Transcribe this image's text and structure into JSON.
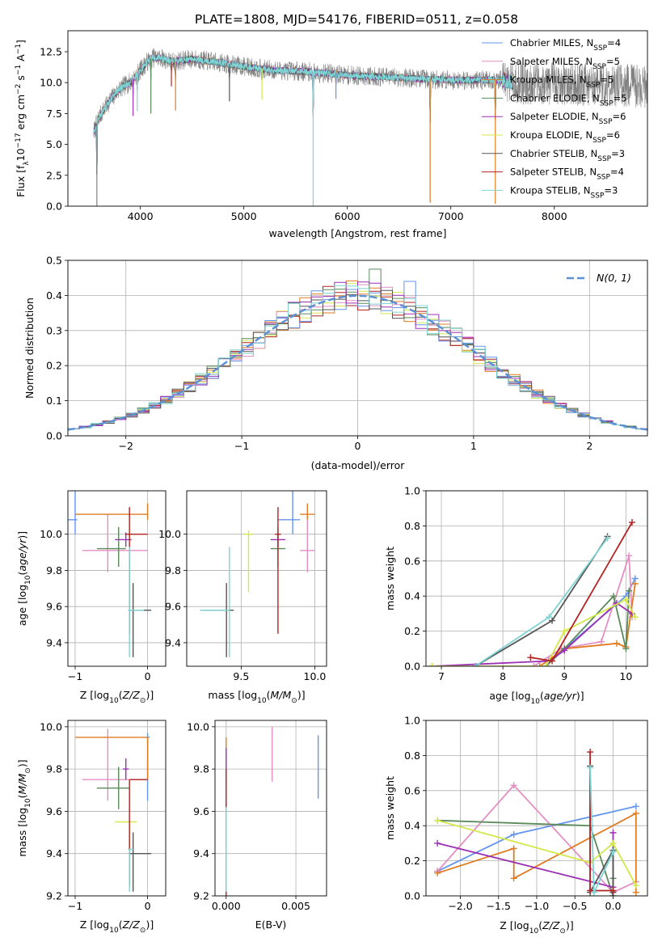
{
  "figure": {
    "title": "PLATE=1808, MJD=54176, FIBERID=0511, z=0.058"
  },
  "colors": {
    "series": [
      "#6495ed",
      "#e48fc4",
      "#e07b22",
      "#5a8a5a",
      "#9b30b3",
      "#d4e84a",
      "#555555",
      "#b22222",
      "#7fd4d4"
    ],
    "grid": "#b0b0b0",
    "gauss": "#5b8fd6"
  },
  "chart_data": [
    {
      "id": "spectrum",
      "type": "line",
      "xlabel": "wavelength [Angstrom, rest frame]",
      "ylabel": "Flux [f_λ 10^-17 erg cm^-2 s^-1 A^-1]",
      "xlim": [
        3300,
        8900
      ],
      "ylim": [
        0,
        14.2
      ],
      "xticks": [
        4000,
        5000,
        6000,
        7000,
        8000
      ],
      "yticks": [
        0.0,
        2.5,
        5.0,
        7.5,
        10.0,
        12.5
      ],
      "ytick_labels": [
        "0.0",
        "2.5",
        "5.0",
        "7.5",
        "10.0",
        "12.5"
      ],
      "grid": false,
      "legend_position": "top-right",
      "legend": [
        {
          "name": "Chabrier MILES, N_SSP=4"
        },
        {
          "name": "Salpeter MILES, N_SSP=5"
        },
        {
          "name": "Kroupa MILES, N_SSP=5"
        },
        {
          "name": "Chabrier ELODIE, N_SSP=5"
        },
        {
          "name": "Salpeter ELODIE, N_SSP=6"
        },
        {
          "name": "Kroupa ELODIE, N_SSP=6"
        },
        {
          "name": "Chabrier STELIB, N_SSP=3"
        },
        {
          "name": "Salpeter STELIB, N_SSP=4"
        },
        {
          "name": "Kroupa STELIB, N_SSP=3"
        }
      ],
      "data_range": [
        3550,
        8900
      ],
      "continuum": {
        "x": [
          3550,
          3600,
          3700,
          3800,
          3900,
          4000,
          4100,
          4200,
          4300,
          4400,
          4500,
          4700,
          5000,
          5300,
          5600,
          6000,
          6500,
          7000,
          7500,
          7600,
          8000,
          8500,
          8900
        ],
        "y": [
          6.0,
          7.2,
          8.5,
          9.5,
          10.0,
          11.0,
          12.0,
          12.0,
          11.7,
          11.8,
          11.9,
          11.7,
          11.3,
          11.0,
          10.9,
          10.6,
          10.4,
          10.2,
          10.2,
          10.0,
          9.9,
          9.8,
          9.7
        ]
      },
      "absorption_features": [
        {
          "x": 3580,
          "depth": 14.0
        },
        {
          "x": 3930,
          "depth": 3.0
        },
        {
          "x": 3970,
          "depth": 3.0
        },
        {
          "x": 4102,
          "depth": 4.5
        },
        {
          "x": 4300,
          "depth": 2.0
        },
        {
          "x": 4340,
          "depth": 4.0
        },
        {
          "x": 4861,
          "depth": 3.0
        },
        {
          "x": 5175,
          "depth": 2.5
        },
        {
          "x": 5670,
          "depth": 11.0
        },
        {
          "x": 5890,
          "depth": 2.0
        },
        {
          "x": 6800,
          "depth": 10.0
        },
        {
          "x": 7430,
          "depth": 10.0
        }
      ]
    },
    {
      "id": "residual-histogram",
      "type": "line",
      "xlabel": "(data-model)/error",
      "ylabel": "Normed distribution",
      "xlim": [
        -2.5,
        2.5
      ],
      "ylim": [
        0,
        0.5
      ],
      "xticks": [
        -2,
        -1,
        0,
        1,
        2
      ],
      "xtick_labels": [
        "−2",
        "−1",
        "0",
        "1",
        "2"
      ],
      "yticks": [
        0.0,
        0.1,
        0.2,
        0.3,
        0.4,
        0.5
      ],
      "ytick_labels": [
        "0.0",
        "0.1",
        "0.2",
        "0.3",
        "0.4",
        "0.5"
      ],
      "grid": true,
      "legend_position": "top-right",
      "legend": [
        {
          "name": "𝒩(0, 1)"
        }
      ],
      "bin_width": 0.1,
      "bin_start": -2.5,
      "gaussian": {
        "mean": 0,
        "sigma": 1
      }
    },
    {
      "id": "age-vs-Z",
      "type": "scatter",
      "xlabel": "Z [log10(Z/Z_sun)]",
      "ylabel": "age  [log10(age/yr)]",
      "xlim": [
        -1.1,
        0.25
      ],
      "ylim": [
        9.27,
        10.24
      ],
      "xticks": [
        -1,
        0
      ],
      "xtick_labels": [
        "−1",
        "0"
      ],
      "yticks": [
        9.4,
        9.6,
        9.8,
        10.0
      ],
      "ytick_labels": [
        "9.4",
        "9.6",
        "9.8",
        "10.0"
      ],
      "grid": true,
      "points": [
        {
          "series": 0,
          "x": -1.0,
          "y": 10.08,
          "x_err": [
            1.0,
            0.03
          ],
          "y_err": [
            0.08,
            0.16
          ]
        },
        {
          "series": 1,
          "x": -0.55,
          "y": 9.91,
          "x_err": [
            0.35,
            0.55
          ],
          "y_err": [
            0.12,
            0.2
          ]
        },
        {
          "series": 2,
          "x": 0.0,
          "y": 10.11,
          "x_err": [
            1.0,
            0.0
          ],
          "y_err": [
            0.03,
            0.06
          ]
        },
        {
          "series": 3,
          "x": -0.4,
          "y": 9.92,
          "x_err": [
            0.3,
            0.1
          ],
          "y_err": [
            0.1,
            0.12
          ]
        },
        {
          "series": 4,
          "x": -0.3,
          "y": 9.97,
          "x_err": [
            0.15,
            0.08
          ],
          "y_err": [
            0.04,
            0.04
          ]
        },
        {
          "series": 5,
          "x": -0.25,
          "y": 10.0,
          "x_err": [
            0.05,
            0.05
          ],
          "y_err": [
            0.02,
            0.02
          ]
        },
        {
          "series": 6,
          "x": -0.2,
          "y": 9.58,
          "x_err": [
            0.05,
            0.25
          ],
          "y_err": [
            0.26,
            0.15
          ]
        },
        {
          "series": 7,
          "x": -0.25,
          "y": 10.0,
          "x_err": [
            0.06,
            0.25
          ],
          "y_err": [
            0.55,
            0.15
          ]
        },
        {
          "series": 8,
          "x": -0.25,
          "y": 9.58,
          "x_err": [
            0.02,
            0.2
          ],
          "y_err": [
            0.26,
            0.35
          ]
        }
      ]
    },
    {
      "id": "age-vs-mass",
      "type": "scatter",
      "xlabel": "mass [log10(M/M_sun)]",
      "ylabel": "",
      "xlim": [
        9.13,
        10.08
      ],
      "ylim": [
        9.27,
        10.24
      ],
      "xticks": [
        9.5,
        10.0
      ],
      "xtick_labels": [
        "9.5",
        "10.0"
      ],
      "yticks": [
        9.4,
        9.6,
        9.8,
        10.0
      ],
      "ytick_labels": [
        "9.4",
        "9.6",
        "9.8",
        "10.0"
      ],
      "grid": true,
      "points": [
        {
          "series": 0,
          "x": 9.85,
          "y": 10.08,
          "x_err": [
            0.1,
            0.05
          ],
          "y_err": [
            0.08,
            0.16
          ]
        },
        {
          "series": 1,
          "x": 9.95,
          "y": 9.91,
          "x_err": [
            0.05,
            0.05
          ],
          "y_err": [
            0.12,
            0.2
          ]
        },
        {
          "series": 2,
          "x": 9.95,
          "y": 10.11,
          "x_err": [
            0.05,
            0.05
          ],
          "y_err": [
            0.03,
            0.06
          ]
        },
        {
          "series": 3,
          "x": 9.75,
          "y": 9.92,
          "x_err": [
            0.05,
            0.05
          ],
          "y_err": [
            0.1,
            0.12
          ]
        },
        {
          "series": 4,
          "x": 9.75,
          "y": 9.97,
          "x_err": [
            0.05,
            0.05
          ],
          "y_err": [
            0.04,
            0.04
          ]
        },
        {
          "series": 5,
          "x": 9.55,
          "y": 10.0,
          "x_err": [
            0.03,
            0.03
          ],
          "y_err": [
            0.32,
            0.02
          ]
        },
        {
          "series": 6,
          "x": 9.4,
          "y": 9.58,
          "x_err": [
            0.17,
            0.05
          ],
          "y_err": [
            0.26,
            0.15
          ]
        },
        {
          "series": 7,
          "x": 9.75,
          "y": 10.0,
          "x_err": [
            0.02,
            0.02
          ],
          "y_err": [
            0.55,
            0.15
          ]
        },
        {
          "series": 8,
          "x": 9.42,
          "y": 9.58,
          "x_err": [
            0.2,
            0.0
          ],
          "y_err": [
            0.26,
            0.35
          ]
        }
      ]
    },
    {
      "id": "weight-vs-age",
      "type": "line",
      "xlabel": "age  [log10(age/yr)]",
      "ylabel": "mass weight",
      "xlim": [
        6.75,
        10.35
      ],
      "ylim": [
        0,
        1.0
      ],
      "xticks": [
        7,
        8,
        9,
        10
      ],
      "xtick_labels": [
        "7",
        "8",
        "9",
        "10"
      ],
      "yticks": [
        0.0,
        0.2,
        0.4,
        0.6,
        0.8,
        1.0
      ],
      "ytick_labels": [
        "0.0",
        "0.2",
        "0.4",
        "0.6",
        "0.8",
        "1.0"
      ],
      "grid": true,
      "series": [
        {
          "x": [
            8.7,
            9.0,
            10.0,
            10.15
          ],
          "y": [
            0.0,
            0.1,
            0.4,
            0.5
          ]
        },
        {
          "x": [
            8.5,
            8.95,
            9.6,
            10.05,
            10.1
          ],
          "y": [
            0.0,
            0.1,
            0.14,
            0.63,
            0.28
          ]
        },
        {
          "x": [
            8.6,
            9.0,
            9.85,
            10.0,
            10.15
          ],
          "y": [
            0.0,
            0.1,
            0.13,
            0.11,
            0.47
          ]
        },
        {
          "x": [
            8.7,
            9.0,
            9.8,
            10.0,
            10.05
          ],
          "y": [
            0.0,
            0.1,
            0.4,
            0.1,
            0.43
          ]
        },
        {
          "x": [
            6.85,
            8.75,
            9.0,
            9.85,
            10.1
          ],
          "y": [
            0.0,
            0.03,
            0.09,
            0.36,
            0.3
          ]
        },
        {
          "x": [
            6.85,
            8.7,
            9.0,
            10.0,
            10.15
          ],
          "y": [
            0.0,
            0.0,
            0.2,
            0.38,
            0.28
          ]
        },
        {
          "x": [
            7.55,
            8.8,
            9.7
          ],
          "y": [
            0.0,
            0.26,
            0.74
          ]
        },
        {
          "x": [
            8.45,
            8.8,
            10.1
          ],
          "y": [
            0.05,
            0.03,
            0.82
          ]
        },
        {
          "x": [
            7.55,
            8.75,
            9.7
          ],
          "y": [
            0.0,
            0.28,
            0.73
          ]
        }
      ]
    },
    {
      "id": "mass-vs-Z",
      "type": "scatter",
      "xlabel": "Z [log10(Z/Z_sun)]",
      "ylabel": "mass [log10(M/M_sun)]",
      "xlim": [
        -1.1,
        0.25
      ],
      "ylim": [
        9.2,
        10.03
      ],
      "xticks": [
        -1,
        0
      ],
      "xtick_labels": [
        "−1",
        "0"
      ],
      "yticks": [
        9.2,
        9.4,
        9.6,
        9.8,
        10.0
      ],
      "ytick_labels": [
        "9.2",
        "9.4",
        "9.6",
        "9.8",
        "10.0"
      ],
      "grid": true,
      "points": [
        {
          "series": 0,
          "x": 0.0,
          "y": 9.95,
          "x_err": [
            0.0,
            0.03
          ],
          "y_err": [
            0.3,
            0.02
          ]
        },
        {
          "series": 1,
          "x": -0.55,
          "y": 9.75,
          "x_err": [
            0.35,
            0.5
          ],
          "y_err": [
            0.1,
            0.24
          ]
        },
        {
          "series": 2,
          "x": 0.0,
          "y": 9.95,
          "x_err": [
            1.0,
            0.0
          ],
          "y_err": [
            0.2,
            0.0
          ]
        },
        {
          "series": 3,
          "x": -0.4,
          "y": 9.71,
          "x_err": [
            0.3,
            0.15
          ],
          "y_err": [
            0.1,
            0.1
          ]
        },
        {
          "series": 4,
          "x": -0.3,
          "y": 9.8,
          "x_err": [
            0.04,
            0.04
          ],
          "y_err": [
            0.05,
            0.05
          ]
        },
        {
          "series": 5,
          "x": -0.25,
          "y": 9.55,
          "x_err": [
            0.2,
            0.1
          ],
          "y_err": [
            0.17,
            0.0
          ]
        },
        {
          "series": 6,
          "x": -0.2,
          "y": 9.4,
          "x_err": [
            0.05,
            0.25
          ],
          "y_err": [
            0.18,
            0.1
          ]
        },
        {
          "series": 7,
          "x": -0.25,
          "y": 9.75,
          "x_err": [
            0.0,
            0.25
          ],
          "y_err": [
            0.5,
            0.0
          ]
        },
        {
          "series": 8,
          "x": -0.25,
          "y": 9.42,
          "x_err": [
            0.02,
            0.05
          ],
          "y_err": [
            0.2,
            0.0
          ]
        }
      ]
    },
    {
      "id": "mass-vs-EBV",
      "type": "scatter",
      "xlabel": "E(B-V)",
      "ylabel": "",
      "xlim": [
        -0.0008,
        0.0072
      ],
      "ylim": [
        9.2,
        10.03
      ],
      "xticks": [
        0.0,
        0.005
      ],
      "xtick_labels": [
        "0.000",
        "0.005"
      ],
      "yticks": [
        9.2,
        9.4,
        9.6,
        9.8,
        10.0
      ],
      "ytick_labels": [
        "9.2",
        "9.4",
        "9.6",
        "9.8",
        "10.0"
      ],
      "grid": true,
      "points": [
        {
          "series": 0,
          "x": 0.0066,
          "y": 9.81,
          "x_err": [
            0,
            0
          ],
          "y_err": [
            0.15,
            0.15
          ]
        },
        {
          "series": 1,
          "x": 0.0033,
          "y": 9.87,
          "x_err": [
            0,
            0
          ],
          "y_err": [
            0.13,
            0.13
          ]
        },
        {
          "series": 2,
          "x": 0.0,
          "y": 9.75,
          "x_err": [
            0,
            0
          ],
          "y_err": [
            0.2,
            0.2
          ]
        },
        {
          "series": 4,
          "x": 0.0,
          "y": 9.8,
          "x_err": [
            0,
            0
          ],
          "y_err": [
            0.1,
            0.1
          ]
        },
        {
          "series": 7,
          "x": 0.0,
          "y": 9.5,
          "x_err": [
            0,
            0
          ],
          "y_err": [
            0.3,
            0.3
          ]
        },
        {
          "series": 8,
          "x": 0.0,
          "y": 9.42,
          "x_err": [
            0,
            0
          ],
          "y_err": [
            0.2,
            0.2
          ]
        }
      ]
    },
    {
      "id": "weight-vs-Z",
      "type": "line",
      "xlabel": "Z [log10(Z/Z_sun)]",
      "ylabel": "mass weight",
      "xlim": [
        -2.45,
        0.45
      ],
      "ylim": [
        0,
        1.0
      ],
      "xticks": [
        -2.0,
        -1.5,
        -1.0,
        -0.5,
        0.0
      ],
      "xtick_labels": [
        "−2.0",
        "−1.5",
        "−1.0",
        "−0.5",
        "0.0"
      ],
      "yticks": [
        0.0,
        0.2,
        0.4,
        0.6,
        0.8,
        1.0
      ],
      "ytick_labels": [
        "0.0",
        "0.2",
        "0.4",
        "0.6",
        "0.8",
        "1.0"
      ],
      "grid": true,
      "series": [
        {
          "x": [
            -2.3,
            -1.3,
            0.3
          ],
          "y": [
            0.14,
            0.35,
            0.51
          ]
        },
        {
          "x": [
            -2.3,
            -1.3,
            0.0,
            0.3
          ],
          "y": [
            0.14,
            0.63,
            0.02,
            0.08
          ]
        },
        {
          "x": [
            -2.3,
            -1.3,
            -1.3,
            0.3,
            0.3
          ],
          "y": [
            0.13,
            0.27,
            0.1,
            0.47,
            0.02
          ]
        },
        {
          "x": [
            -2.3,
            -0.3,
            0.0,
            0.0
          ],
          "y": [
            0.43,
            0.4,
            0.0,
            0.1
          ]
        },
        {
          "x": [
            -2.3,
            0.0,
            0.0
          ],
          "y": [
            0.3,
            0.05,
            0.36
          ]
        },
        {
          "x": [
            -2.3,
            -0.3,
            0.0,
            0.3
          ],
          "y": [
            0.43,
            0.19,
            0.3,
            0.06
          ]
        },
        {
          "x": [
            -0.3,
            -0.3,
            0.0,
            0.0
          ],
          "y": [
            0.74,
            0.02,
            0.26,
            0.02
          ]
        },
        {
          "x": [
            -0.3,
            -0.3,
            0.0
          ],
          "y": [
            0.82,
            0.03,
            0.03
          ]
        },
        {
          "x": [
            -0.3,
            -0.25,
            0.0
          ],
          "y": [
            0.73,
            0.02,
            0.25
          ]
        }
      ]
    }
  ]
}
